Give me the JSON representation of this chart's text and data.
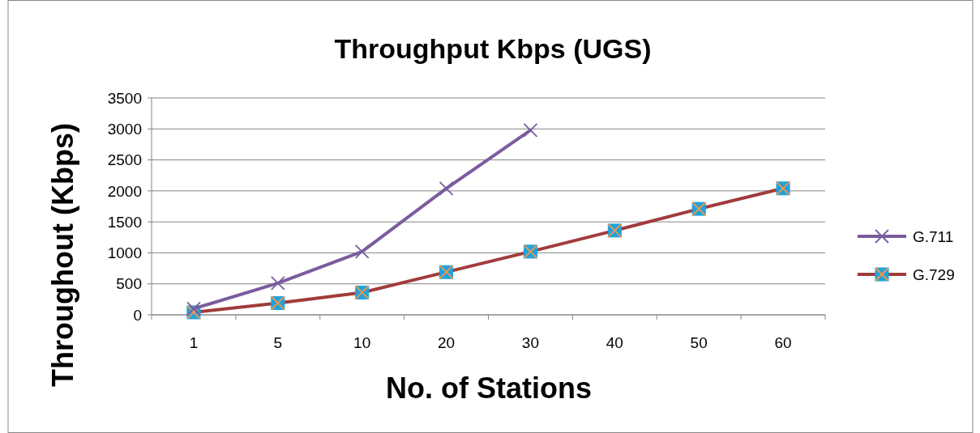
{
  "chart_data": {
    "type": "line",
    "title": "Throughput Kbps (UGS)",
    "xlabel": "No. of Stations",
    "ylabel": "Throughout (Kbps)",
    "categories": [
      "1",
      "5",
      "10",
      "20",
      "30",
      "40",
      "50",
      "60"
    ],
    "series": [
      {
        "name": "G.711",
        "color": "#7a5c9e",
        "marker": "cross",
        "values": [
          100,
          510,
          1020,
          2040,
          2980,
          null,
          null,
          null
        ]
      },
      {
        "name": "G.729",
        "color": "#a03c3a",
        "marker": "square",
        "values": [
          40,
          190,
          360,
          690,
          1020,
          1360,
          1710,
          2040
        ]
      }
    ],
    "ylim": [
      0,
      3500
    ],
    "yticks": [
      0,
      500,
      1000,
      1500,
      2000,
      2500,
      3000,
      3500
    ],
    "grid": "y",
    "legend": "right"
  }
}
